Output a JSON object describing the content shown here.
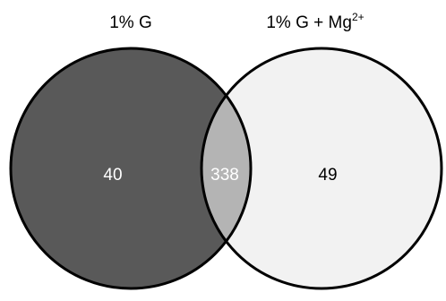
{
  "venn": {
    "sets": [
      {
        "label": "1% G",
        "label_suffix": "",
        "color": "#595959"
      },
      {
        "label": "1% G + Mg",
        "label_suffix": "2+",
        "color": "#f2f2f2"
      }
    ],
    "overlap_color": "#b4b4b4",
    "counts": {
      "left_only": "40",
      "both": "338",
      "right_only": "49"
    },
    "number_colors": {
      "left_only": "#ffffff",
      "both": "#ffffff",
      "right_only": "#000000"
    }
  }
}
